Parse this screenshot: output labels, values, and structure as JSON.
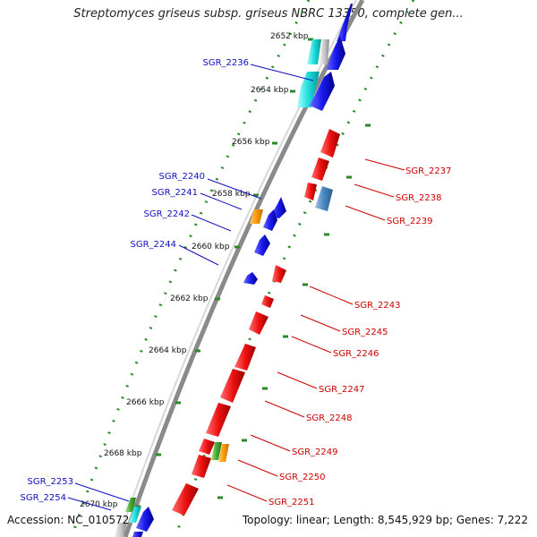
{
  "title": "Streptomyces griseus subsp. griseus NBRC 13350, complete gen...",
  "accession_text": "Accession: NC_010572",
  "topology_text": "Topology: linear; Length: 8,545,929 bp; Genes: 7,222",
  "colors": {
    "backbone": "#8a8a8a",
    "tick_dots": "#2a8a2a",
    "tick_label": "#111111",
    "left_label": "#1010c0",
    "right_label": "#cc0000",
    "forward_gene": "#1a1aee",
    "reverse_gene": "#ee1111"
  },
  "kbp_ticks": [
    {
      "label": "2652 kbp"
    },
    {
      "label": "2654 kbp"
    },
    {
      "label": "2656 kbp"
    },
    {
      "label": "2658 kbp"
    },
    {
      "label": "2660 kbp"
    },
    {
      "label": "2662 kbp"
    },
    {
      "label": "2664 kbp"
    },
    {
      "label": "2666 kbp"
    },
    {
      "label": "2668 kbp"
    },
    {
      "label": "2670 kbp"
    }
  ],
  "left_genes": [
    {
      "label": "SGR_2236"
    },
    {
      "label": "SGR_2240"
    },
    {
      "label": "SGR_2241"
    },
    {
      "label": "SGR_2242"
    },
    {
      "label": "SGR_2244"
    },
    {
      "label": "SGR_2253"
    },
    {
      "label": "SGR_2254"
    }
  ],
  "right_genes": [
    {
      "label": "SGR_2237"
    },
    {
      "label": "SGR_2238"
    },
    {
      "label": "SGR_2239"
    },
    {
      "label": "SGR_2243"
    },
    {
      "label": "SGR_2245"
    },
    {
      "label": "SGR_2246"
    },
    {
      "label": "SGR_2247"
    },
    {
      "label": "SGR_2248"
    },
    {
      "label": "SGR_2249"
    },
    {
      "label": "SGR_2250"
    },
    {
      "label": "SGR_2251"
    }
  ]
}
